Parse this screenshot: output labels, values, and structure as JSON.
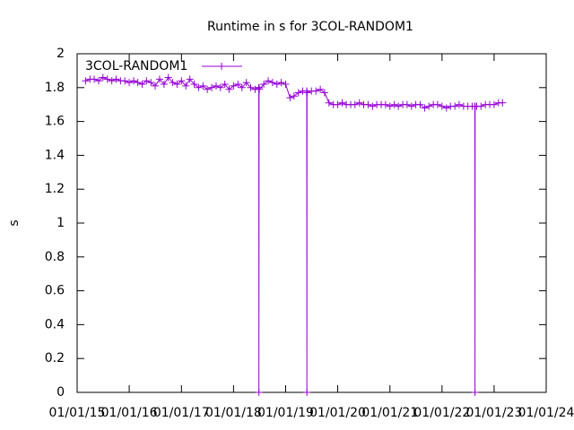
{
  "chart_data": {
    "type": "line",
    "title": "Runtime in s for 3COL-RANDOM1",
    "y_label": "s",
    "x": [
      "03/01/15",
      "04/01/15",
      "05/01/15",
      "06/01/15",
      "07/01/15",
      "08/01/15",
      "09/01/15",
      "10/01/15",
      "11/01/15",
      "12/01/15",
      "01/01/16",
      "02/01/16",
      "03/01/16",
      "04/01/16",
      "05/01/16",
      "06/01/16",
      "07/01/16",
      "08/01/16",
      "09/01/16",
      "10/01/16",
      "11/01/16",
      "12/01/16",
      "01/01/17",
      "02/01/17",
      "03/01/17",
      "04/01/17",
      "05/01/17",
      "06/01/17",
      "07/01/17",
      "08/01/17",
      "09/01/17",
      "10/01/17",
      "11/01/17",
      "12/01/17",
      "01/01/18",
      "02/01/18",
      "03/01/18",
      "04/01/18",
      "05/01/18",
      "06/01/18",
      "06/27/18",
      "06/28/18",
      "06/29/18",
      "07/01/18",
      "08/01/18",
      "09/01/18",
      "10/01/18",
      "11/01/18",
      "12/01/18",
      "01/01/19",
      "02/01/19",
      "03/01/19",
      "04/01/19",
      "05/01/19",
      "05/29/19",
      "05/30/19",
      "05/31/19",
      "06/01/19",
      "07/01/19",
      "08/01/19",
      "09/01/19",
      "10/01/19",
      "11/01/19",
      "12/01/19",
      "01/01/20",
      "02/01/20",
      "03/01/20",
      "04/01/20",
      "05/01/20",
      "06/01/20",
      "07/01/20",
      "08/01/20",
      "09/01/20",
      "10/01/20",
      "11/01/20",
      "12/01/20",
      "01/01/21",
      "02/01/21",
      "03/01/21",
      "04/01/21",
      "05/01/21",
      "06/01/21",
      "07/01/21",
      "08/01/21",
      "09/01/21",
      "10/01/21",
      "11/01/21",
      "12/01/21",
      "01/01/22",
      "02/01/22",
      "03/01/22",
      "04/01/22",
      "05/01/22",
      "06/01/22",
      "07/01/22",
      "08/01/22",
      "08/19/22",
      "08/20/22",
      "08/21/22",
      "09/01/22",
      "10/01/22",
      "11/01/22",
      "12/01/22",
      "01/01/23",
      "02/01/23",
      "03/01/23"
    ],
    "series": [
      {
        "name": "3COL-RANDOM1",
        "color": "#9400d3",
        "values": [
          1.84,
          1.85,
          1.85,
          1.84,
          1.86,
          1.85,
          1.84,
          1.85,
          1.84,
          1.84,
          1.83,
          1.84,
          1.83,
          1.82,
          1.84,
          1.83,
          1.81,
          1.85,
          1.82,
          1.86,
          1.83,
          1.82,
          1.84,
          1.81,
          1.85,
          1.82,
          1.8,
          1.81,
          1.79,
          1.8,
          1.81,
          1.8,
          1.82,
          1.79,
          1.81,
          1.82,
          1.8,
          1.83,
          1.8,
          1.79,
          1.8,
          0,
          1.8,
          1.79,
          1.82,
          1.84,
          1.83,
          1.82,
          1.83,
          1.82,
          1.74,
          1.75,
          1.77,
          1.78,
          1.78,
          0,
          1.77,
          1.77,
          1.78,
          1.78,
          1.79,
          1.77,
          1.71,
          1.7,
          1.7,
          1.71,
          1.7,
          1.7,
          1.7,
          1.71,
          1.7,
          1.7,
          1.69,
          1.7,
          1.7,
          1.7,
          1.69,
          1.7,
          1.69,
          1.7,
          1.7,
          1.69,
          1.7,
          1.7,
          1.68,
          1.69,
          1.7,
          1.7,
          1.69,
          1.68,
          1.69,
          1.69,
          1.7,
          1.69,
          1.69,
          1.69,
          1.69,
          0,
          1.69,
          1.69,
          1.69,
          1.7,
          1.7,
          1.7,
          1.71,
          1.71
        ]
      }
    ],
    "xlim": [
      "01/01/15",
      "01/01/24"
    ],
    "xticks": [
      "01/01/15",
      "01/01/16",
      "01/01/17",
      "01/01/18",
      "01/01/19",
      "01/01/20",
      "01/01/21",
      "01/01/22",
      "01/01/23",
      "01/01/24"
    ],
    "ylim": [
      0,
      2
    ],
    "yticks": [
      0,
      0.2,
      0.4,
      0.6,
      0.8,
      1,
      1.2,
      1.4,
      1.6,
      1.8,
      2
    ],
    "grid": false,
    "legend": "top-left"
  }
}
